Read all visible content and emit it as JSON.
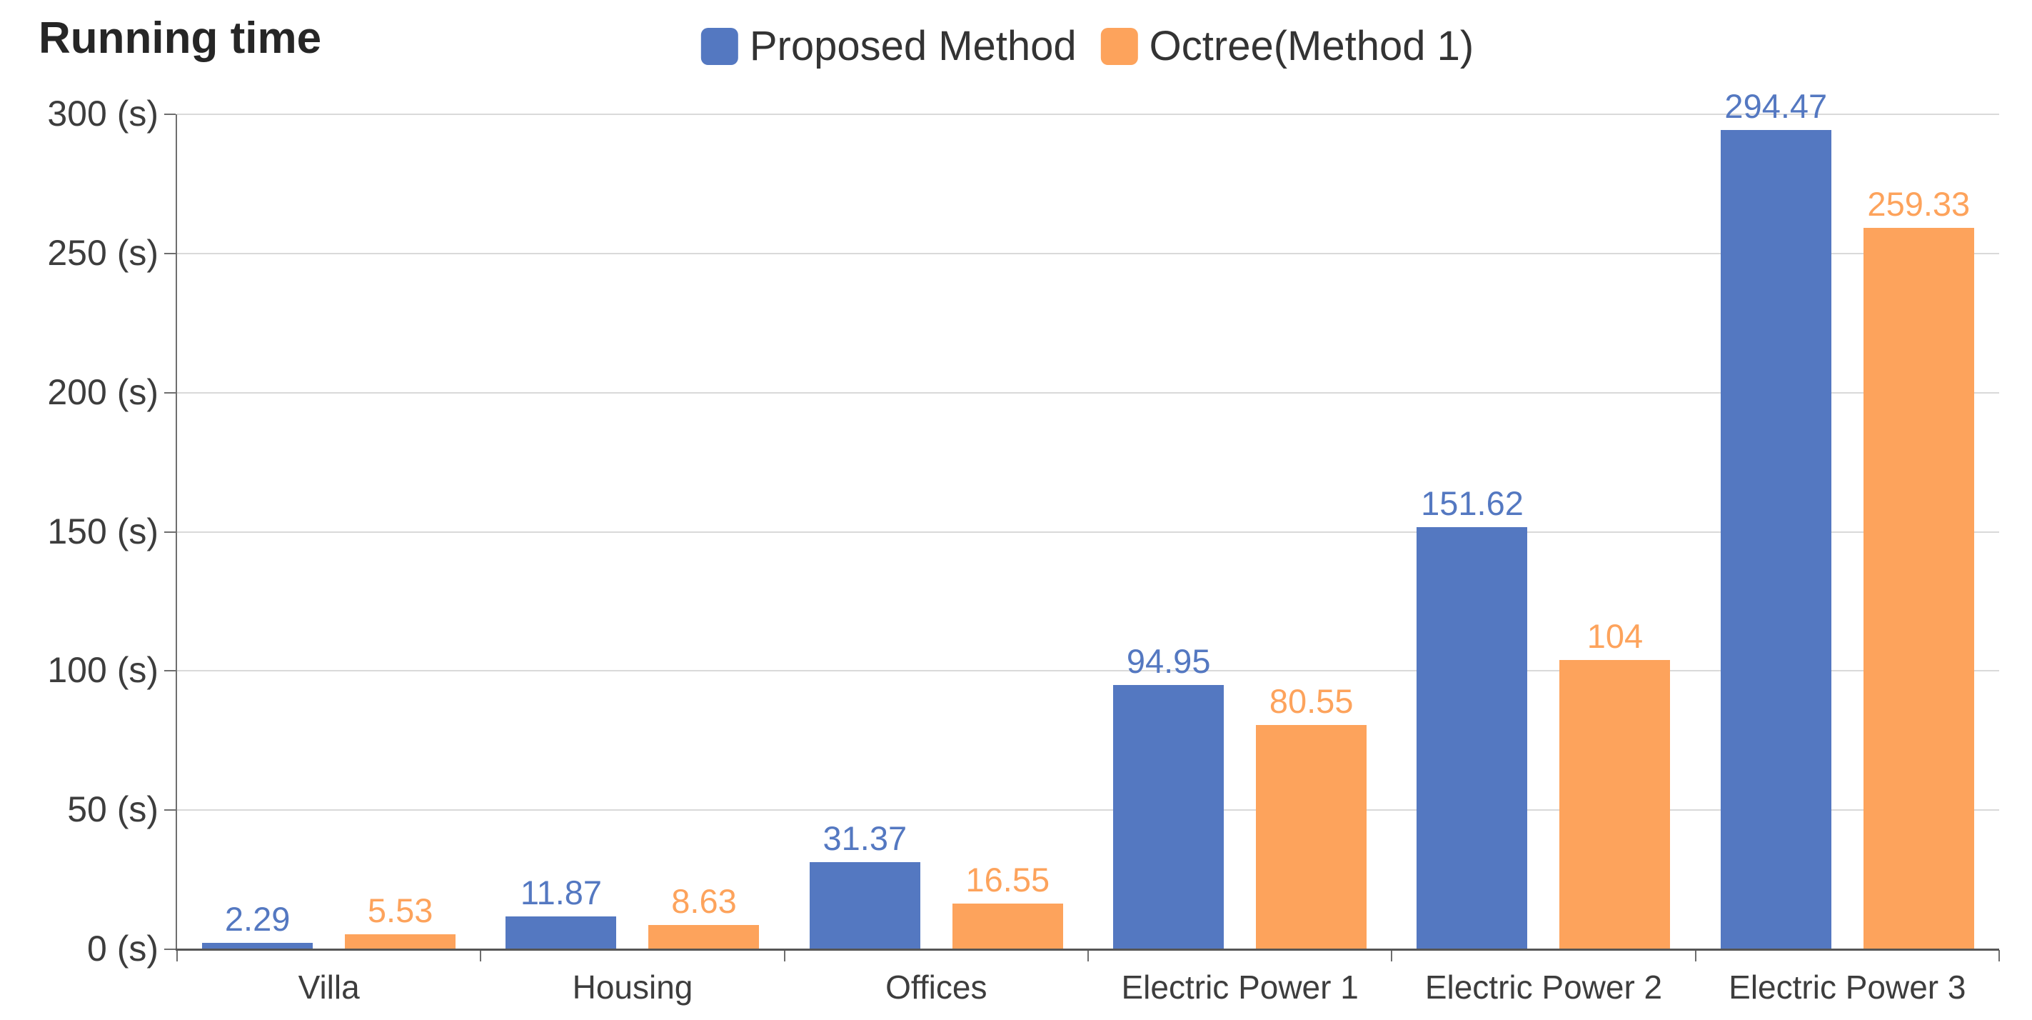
{
  "chart_data": {
    "type": "bar",
    "title": "Running time",
    "categories": [
      "Villa",
      "Housing",
      "Offices",
      "Electric Power 1",
      "Electric Power 2",
      "Electric Power 3"
    ],
    "series": [
      {
        "name": "Proposed Method",
        "color": "#5478C1",
        "values": [
          2.29,
          11.87,
          31.37,
          94.95,
          151.62,
          294.47
        ],
        "data_labels": [
          "2.29",
          "11.87",
          "31.37",
          "94.95",
          "151.62",
          "294.47"
        ]
      },
      {
        "name": "Octree(Method 1)",
        "color": "#FDA35C",
        "values": [
          5.53,
          8.63,
          16.55,
          80.55,
          104,
          259.33
        ],
        "data_labels": [
          "5.53",
          "8.63",
          "16.55",
          "80.55",
          "104",
          "259.33"
        ]
      }
    ],
    "y_axis": {
      "min": 0,
      "max": 300,
      "step": 50,
      "tick_labels": [
        "0 (s)",
        "50 (s)",
        "100 (s)",
        "150 (s)",
        "200 (s)",
        "250 (s)",
        "300 (s)"
      ]
    },
    "x_axis": {
      "tick_marks": "between-categories"
    },
    "legend_position": "top-center",
    "grid": true,
    "colors": {
      "gridline": "#d9d9d9",
      "axis": "#6e6e6e",
      "title_text": "#262626",
      "axis_text": "#3d3d3d"
    }
  }
}
